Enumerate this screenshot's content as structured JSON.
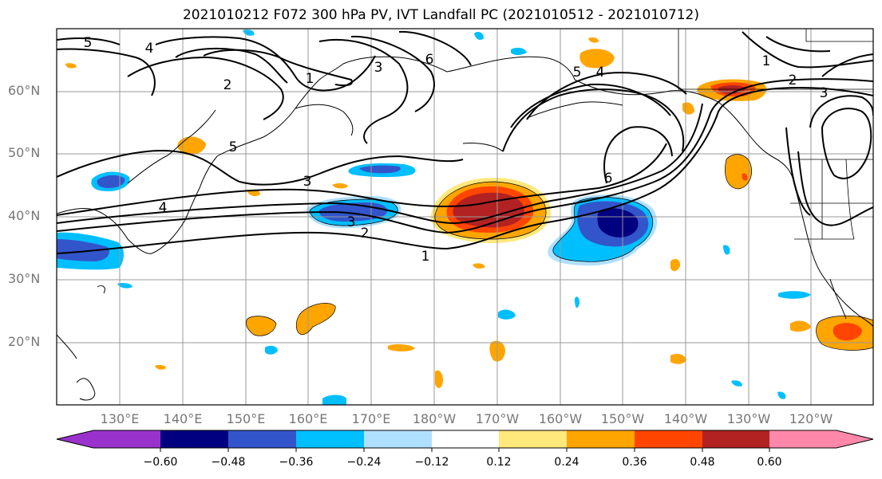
{
  "title": "2021010212 F072 300 hPa PV, IVT Landfall PC (2021010512 - 2021010712)",
  "map": {
    "lat_labels": [
      "60°N",
      "50°N",
      "40°N",
      "30°N",
      "20°N"
    ],
    "lon_labels": [
      "130°E",
      "140°E",
      "150°E",
      "160°E",
      "170°E",
      "180°W",
      "170°W",
      "160°W",
      "150°W",
      "140°W",
      "130°W",
      "120°W"
    ],
    "contour_labels": [
      "5",
      "4",
      "2",
      "1",
      "3",
      "6",
      "5",
      "4",
      "1",
      "2",
      "3",
      "5",
      "3",
      "4",
      "3",
      "2",
      "1",
      "6"
    ],
    "fill_colors": {
      "positive_strong": "#b22222",
      "positive_mid": "#ff4500",
      "positive_low": "#ffa500",
      "positive_faint": "#ffe87c",
      "negative_faint": "#b0e0ff",
      "negative_low": "#00bfff",
      "negative_mid": "#3355cc",
      "negative_strong": "#000080"
    }
  },
  "colorbar": {
    "colors": [
      "#9932cc",
      "#000080",
      "#3355cc",
      "#00bfff",
      "#b0e0ff",
      "#ffffff",
      "#ffe87c",
      "#ffa500",
      "#ff4500",
      "#b22222",
      "#ff88aa"
    ],
    "tick_labels": [
      "−0.60",
      "−0.48",
      "−0.36",
      "−0.24",
      "−0.12",
      "0.12",
      "0.24",
      "0.36",
      "0.48",
      "0.60"
    ]
  }
}
